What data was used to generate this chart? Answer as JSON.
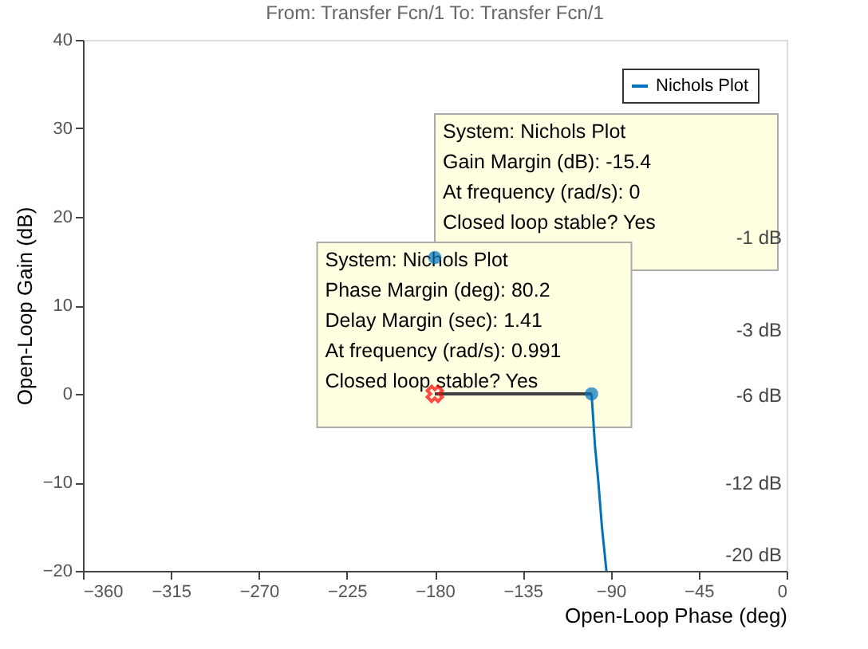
{
  "chart_data": {
    "type": "line",
    "title": "From: Transfer Fcn/1  To: Transfer Fcn/1",
    "xlabel": "Open-Loop Phase (deg)",
    "ylabel": "Open-Loop Gain (dB)",
    "xlim": [
      -360,
      0
    ],
    "xticks": [
      -360,
      -315,
      -270,
      -225,
      -180,
      -135,
      -90,
      -45,
      0
    ],
    "ylim": [
      -20,
      40
    ],
    "yticks": [
      -20,
      -10,
      0,
      10,
      20,
      30,
      40
    ],
    "legend": "top right",
    "grid": false,
    "series": [
      {
        "name": "Nichols Plot",
        "color": "#0072bd",
        "x": [
          -99.8,
          -98,
          -96.3,
          -94.5,
          -92.2
        ],
        "values": [
          0,
          -6,
          -10,
          -15,
          -20
        ]
      },
      {
        "type": "scatter",
        "color": "#0072bd",
        "x": [
          -180
        ],
        "values": [
          15.4
        ],
        "marker": "circle"
      },
      {
        "type": "line",
        "color": "#404040",
        "x": [
          -180,
          -99.8
        ],
        "values": [
          0,
          0
        ]
      },
      {
        "type": "scatter",
        "color": "#0072bd",
        "x": [
          -99.8
        ],
        "values": [
          0
        ],
        "marker": "circle"
      },
      {
        "type": "scatter",
        "color": "#ff0000",
        "x": [
          -180
        ],
        "values": [
          0
        ],
        "marker": "cross"
      }
    ],
    "annotations": [
      {
        "text": "System: Nichols Plot\nGain Margin (dB): -15.4\nAt frequency (rad/s): 0\nClosed loop stable? Yes",
        "x": -180,
        "y": 15.4
      },
      {
        "text": "System: Nichols Plot\nPhase Margin (deg): 80.2\nDelay Margin (sec): 1.41\nAt frequency (rad/s): 0.991\nClosed loop stable? Yes",
        "x": -99.8,
        "y": 0
      },
      "-1 dB",
      "-3 dB",
      "-6 dB",
      "-12 dB",
      "-20 dB"
    ]
  }
}
